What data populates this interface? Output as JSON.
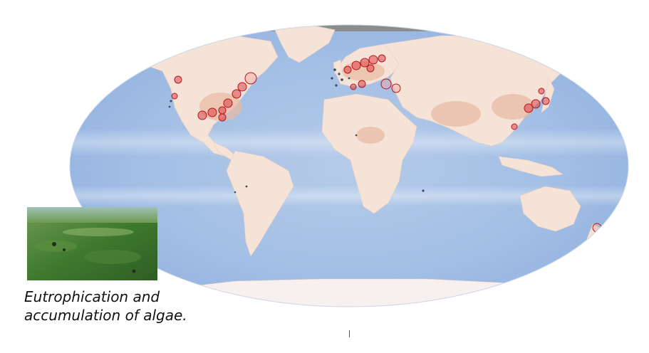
{
  "caption": {
    "line1": "Eutrophication and",
    "line2": "accumulation of algae."
  },
  "colors": {
    "ocean": "#a9c3e6",
    "ocean_deep": "#7fa3d6",
    "ocean_pale": "#d4e2f3",
    "land": "#f5e3d8",
    "land_dense": "#e9b9a2",
    "ice": "#f7f0ee",
    "polar_gray": "#8c8c8c",
    "dead_zone": "#d6232a",
    "inset_green": "#3f7a2e"
  },
  "legend_icons": [
    "dead-zone-marker-icon"
  ]
}
